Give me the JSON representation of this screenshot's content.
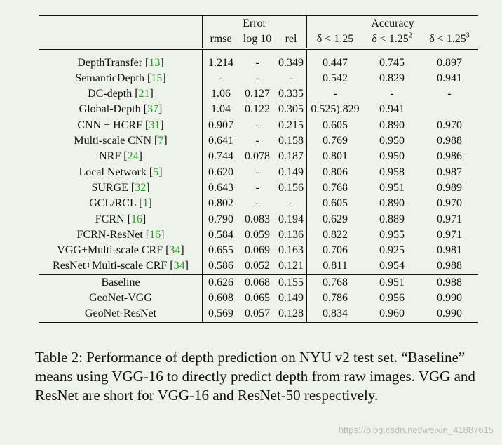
{
  "table": {
    "group_error": "Error",
    "group_accuracy": "Accuracy",
    "col_headers": [
      "rmse",
      "log 10",
      "rel",
      "δ < 1.25",
      "δ < 1.25",
      "δ < 1.25"
    ],
    "col_sups": [
      "",
      "",
      "",
      "",
      "2",
      "3"
    ],
    "sections": [
      {
        "rows": [
          {
            "method": "DepthTransfer",
            "cite": "13",
            "values": [
              "1.214",
              "-",
              "0.349",
              "0.447",
              "0.745",
              "0.897"
            ],
            "bold": [
              false,
              false,
              false,
              false,
              false,
              false
            ]
          },
          {
            "method": "SemanticDepth",
            "cite": "15",
            "values": [
              "-",
              "-",
              "-",
              "0.542",
              "0.829",
              "0.941"
            ],
            "bold": [
              false,
              false,
              false,
              false,
              false,
              false
            ]
          },
          {
            "method": "DC-depth",
            "cite": "21",
            "values": [
              "1.06",
              "0.127",
              "0.335",
              "-",
              "-",
              "-"
            ],
            "bold": [
              false,
              false,
              false,
              false,
              false,
              false
            ]
          },
          {
            "method": "Global-Depth",
            "cite": "37",
            "values": [
              "1.04",
              "0.122",
              "0.305",
              "0.525).829",
              "0.941",
              ""
            ],
            "bold": [
              false,
              false,
              false,
              false,
              false,
              false
            ]
          },
          {
            "method": "CNN + HCRF",
            "cite": "31",
            "values": [
              "0.907",
              "-",
              "0.215",
              "0.605",
              "0.890",
              "0.970"
            ],
            "bold": [
              false,
              false,
              false,
              false,
              false,
              false
            ]
          },
          {
            "method": "Multi-scale CNN",
            "cite": "7",
            "values": [
              "0.641",
              "-",
              "0.158",
              "0.769",
              "0.950",
              "0.988"
            ],
            "bold": [
              false,
              false,
              false,
              false,
              false,
              false
            ]
          },
          {
            "method": "NRF",
            "cite": "24",
            "values": [
              "0.744",
              "0.078",
              "0.187",
              "0.801",
              "0.950",
              "0.986"
            ],
            "bold": [
              false,
              false,
              false,
              false,
              false,
              false
            ]
          },
          {
            "method": "Local Network",
            "cite": "5",
            "values": [
              "0.620",
              "-",
              "0.149",
              "0.806",
              "0.958",
              "0.987"
            ],
            "bold": [
              false,
              false,
              false,
              false,
              false,
              false
            ]
          },
          {
            "method": "SURGE",
            "cite": "32",
            "values": [
              "0.643",
              "-",
              "0.156",
              "0.768",
              "0.951",
              "0.989"
            ],
            "bold": [
              false,
              false,
              false,
              false,
              false,
              false
            ]
          },
          {
            "method": "GCL/RCL",
            "cite": "1",
            "values": [
              "0.802",
              "-",
              "-",
              "0.605",
              "0.890",
              "0.970"
            ],
            "bold": [
              false,
              false,
              false,
              false,
              false,
              false
            ]
          },
          {
            "method": "FCRN",
            "cite": "16",
            "values": [
              "0.790",
              "0.083",
              "0.194",
              "0.629",
              "0.889",
              "0.971"
            ],
            "bold": [
              false,
              false,
              false,
              false,
              false,
              false
            ]
          },
          {
            "method": "FCRN-ResNet",
            "cite": "16",
            "values": [
              "0.584",
              "0.059",
              "0.136",
              "0.822",
              "0.955",
              "0.971"
            ],
            "bold": [
              false,
              false,
              false,
              false,
              false,
              false
            ]
          },
          {
            "method": "VGG+Multi-scale CRF",
            "cite": "34",
            "values": [
              "0.655",
              "0.069",
              "0.163",
              "0.706",
              "0.925",
              "0.981"
            ],
            "bold": [
              false,
              false,
              false,
              false,
              false,
              false
            ]
          },
          {
            "method": "ResNet+Multi-scale CRF",
            "cite": "34",
            "values": [
              "0.586",
              "0.052",
              "0.121",
              "0.811",
              "0.954",
              "0.988"
            ],
            "bold": [
              false,
              true,
              true,
              false,
              false,
              false
            ]
          }
        ]
      },
      {
        "rows": [
          {
            "method": "Baseline",
            "cite": "",
            "values": [
              "0.626",
              "0.068",
              "0.155",
              "0.768",
              "0.951",
              "0.988"
            ],
            "bold": [
              false,
              false,
              false,
              false,
              false,
              false
            ]
          },
          {
            "method": "GeoNet-VGG",
            "cite": "",
            "values": [
              "0.608",
              "0.065",
              "0.149",
              "0.786",
              "0.956",
              "0.990"
            ],
            "bold": [
              false,
              false,
              false,
              false,
              false,
              false
            ]
          },
          {
            "method": "GeoNet-ResNet",
            "cite": "",
            "values": [
              "0.569",
              "0.057",
              "0.128",
              "0.834",
              "0.960",
              "0.990"
            ],
            "bold": [
              true,
              false,
              false,
              true,
              true,
              true
            ]
          }
        ]
      }
    ]
  },
  "caption": "Table 2: Performance of depth prediction on NYU v2 test set. “Baseline” means using VGG-16 to directly predict depth from raw images. VGG and ResNet are short for VGG-16 and ResNet-50 respectively.",
  "watermark": "https://blog.csdn.net/weixin_41887615",
  "colors": {
    "background": "#eef2ea",
    "citation": "#1fa11f",
    "text": "#111111"
  }
}
